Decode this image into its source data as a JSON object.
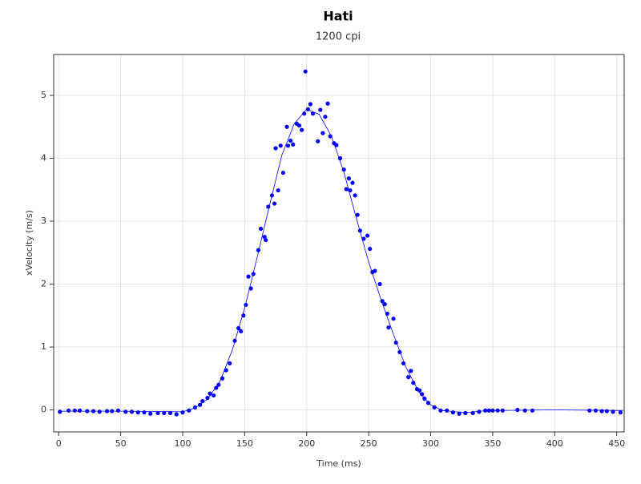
{
  "chart_data": {
    "type": "scatter",
    "title": "Hati",
    "subtitle": "1200 cpi",
    "x_label": "Time (ms)",
    "y_label": "xVelocity (m/s)",
    "xlim": [
      -4,
      456
    ],
    "ylim": [
      -0.35,
      5.65
    ],
    "xticks": [
      0,
      50,
      100,
      150,
      200,
      250,
      300,
      350,
      400,
      450
    ],
    "yticks": [
      0,
      1,
      2,
      3,
      4,
      5
    ],
    "grid": true,
    "series": [
      {
        "style": "markers",
        "color": "#0000ff",
        "x": [
          1,
          8,
          13,
          17,
          23,
          28,
          33,
          39,
          43,
          48,
          54,
          59,
          64,
          69,
          74,
          80,
          85,
          90,
          95,
          100,
          105,
          110,
          114,
          116,
          120,
          122,
          125,
          127,
          129,
          132,
          135,
          138,
          142,
          145,
          147,
          149,
          151,
          153,
          155,
          157,
          161,
          163,
          166,
          167,
          169,
          172,
          174,
          175,
          177,
          179,
          181,
          184,
          185,
          187,
          189,
          192,
          194,
          196,
          198,
          199,
          201,
          203,
          205,
          209,
          211,
          213,
          215,
          217,
          219,
          222,
          224,
          227,
          230,
          232,
          234,
          235,
          237,
          239,
          241,
          243,
          246,
          249,
          251,
          253,
          255,
          259,
          261,
          263,
          265,
          266,
          270,
          272,
          275,
          278,
          282,
          284,
          286,
          289,
          291,
          293,
          295,
          298,
          303,
          308,
          313,
          318,
          323,
          328,
          334,
          339,
          344,
          347,
          350,
          354,
          358,
          370,
          376,
          382,
          428,
          433,
          438,
          442,
          447,
          453
        ],
        "values": [
          -0.03,
          -0.01,
          -0.01,
          -0.01,
          -0.02,
          -0.02,
          -0.03,
          -0.02,
          -0.02,
          -0.01,
          -0.03,
          -0.03,
          -0.04,
          -0.04,
          -0.06,
          -0.05,
          -0.05,
          -0.05,
          -0.07,
          -0.04,
          -0.01,
          0.04,
          0.08,
          0.14,
          0.19,
          0.26,
          0.23,
          0.35,
          0.4,
          0.5,
          0.63,
          0.74,
          1.1,
          1.3,
          1.25,
          1.5,
          1.67,
          2.12,
          1.93,
          2.16,
          2.54,
          2.88,
          2.75,
          2.7,
          3.23,
          3.41,
          3.28,
          4.16,
          3.49,
          4.2,
          3.77,
          4.5,
          4.2,
          4.28,
          4.22,
          4.55,
          4.52,
          4.45,
          4.71,
          5.38,
          4.78,
          4.86,
          4.71,
          4.27,
          4.77,
          4.4,
          4.66,
          4.87,
          4.35,
          4.24,
          4.21,
          4.0,
          3.82,
          3.51,
          3.68,
          3.49,
          3.61,
          3.41,
          3.1,
          2.85,
          2.72,
          2.77,
          2.56,
          2.19,
          2.21,
          2.0,
          1.73,
          1.68,
          1.53,
          1.31,
          1.45,
          1.07,
          0.92,
          0.74,
          0.52,
          0.62,
          0.43,
          0.33,
          0.31,
          0.25,
          0.18,
          0.11,
          0.04,
          -0.01,
          -0.01,
          -0.04,
          -0.06,
          -0.05,
          -0.05,
          -0.03,
          -0.01,
          -0.01,
          -0.01,
          -0.01,
          -0.01,
          0.0,
          -0.01,
          -0.01,
          -0.01,
          -0.01,
          -0.02,
          -0.02,
          -0.03,
          -0.04
        ]
      },
      {
        "style": "line",
        "color": "#0000ff",
        "x": [
          0,
          50,
          100,
          110,
          120,
          130,
          140,
          150,
          160,
          170,
          180,
          190,
          200,
          210,
          220,
          230,
          240,
          250,
          260,
          270,
          280,
          290,
          300,
          310,
          320,
          330,
          340,
          350,
          400,
          455
        ],
        "values": [
          -0.02,
          -0.02,
          -0.03,
          0.03,
          0.17,
          0.45,
          0.95,
          1.62,
          2.42,
          3.25,
          4.05,
          4.55,
          4.78,
          4.7,
          4.35,
          3.78,
          3.05,
          2.35,
          1.75,
          1.2,
          0.68,
          0.3,
          0.08,
          -0.01,
          -0.03,
          -0.04,
          -0.02,
          -0.01,
          0,
          -0.01
        ]
      }
    ]
  }
}
